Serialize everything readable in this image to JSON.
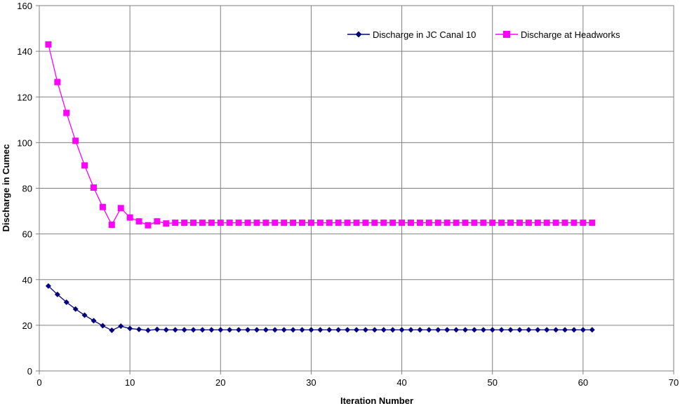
{
  "chart_data": {
    "type": "line",
    "title": "",
    "xlabel": "Iteration Number",
    "ylabel": "Discharge in Cumec",
    "xlim": [
      0,
      70
    ],
    "ylim": [
      0,
      160
    ],
    "xticks": [
      0,
      10,
      20,
      30,
      40,
      50,
      60,
      70
    ],
    "yticks": [
      0,
      20,
      40,
      60,
      80,
      100,
      120,
      140,
      160
    ],
    "grid": true,
    "legend_position": "top-right",
    "x": [
      1,
      2,
      3,
      4,
      5,
      6,
      7,
      8,
      9,
      10,
      11,
      12,
      13,
      14,
      15,
      16,
      17,
      18,
      19,
      20,
      21,
      22,
      23,
      24,
      25,
      26,
      27,
      28,
      29,
      30,
      31,
      32,
      33,
      34,
      35,
      36,
      37,
      38,
      39,
      40,
      41,
      42,
      43,
      44,
      45,
      46,
      47,
      48,
      49,
      50,
      51,
      52,
      53,
      54,
      55,
      56,
      57,
      58,
      59,
      60,
      61
    ],
    "series": [
      {
        "name": "Discharge in JC Canal 10",
        "color": "#000080",
        "marker": "diamond",
        "values": [
          37.2,
          33.5,
          30.1,
          27.1,
          24.4,
          22.0,
          19.8,
          17.8,
          19.6,
          18.6,
          18.2,
          17.8,
          18.2,
          18.0,
          18.0,
          18.0,
          18.0,
          18.0,
          18.0,
          18.0,
          18.0,
          18.0,
          18.0,
          18.0,
          18.0,
          18.0,
          18.0,
          18.0,
          18.0,
          18.0,
          18.0,
          18.0,
          18.0,
          18.0,
          18.0,
          18.0,
          18.0,
          18.0,
          18.0,
          18.0,
          18.0,
          18.0,
          18.0,
          18.0,
          18.0,
          18.0,
          18.0,
          18.0,
          18.0,
          18.0,
          18.0,
          18.0,
          18.0,
          18.0,
          18.0,
          18.0,
          18.0,
          18.0,
          18.0,
          18.0,
          18.0
        ]
      },
      {
        "name": "Discharge at Headworks",
        "color": "#FF00FF",
        "marker": "square",
        "values": [
          143.0,
          126.5,
          113.0,
          100.8,
          90.0,
          80.3,
          71.8,
          64.0,
          71.3,
          67.2,
          65.5,
          63.8,
          65.5,
          64.6,
          64.9,
          64.9,
          64.9,
          64.9,
          64.9,
          64.9,
          64.9,
          64.9,
          64.9,
          64.9,
          64.9,
          64.9,
          64.9,
          64.9,
          64.9,
          64.9,
          64.9,
          64.9,
          64.9,
          64.9,
          64.9,
          64.9,
          64.9,
          64.9,
          64.9,
          64.9,
          64.9,
          64.9,
          64.9,
          64.9,
          64.9,
          64.9,
          64.9,
          64.9,
          64.9,
          64.9,
          64.9,
          64.9,
          64.9,
          64.9,
          64.9,
          64.9,
          64.9,
          64.9,
          64.9,
          64.9,
          64.9
        ]
      }
    ]
  }
}
